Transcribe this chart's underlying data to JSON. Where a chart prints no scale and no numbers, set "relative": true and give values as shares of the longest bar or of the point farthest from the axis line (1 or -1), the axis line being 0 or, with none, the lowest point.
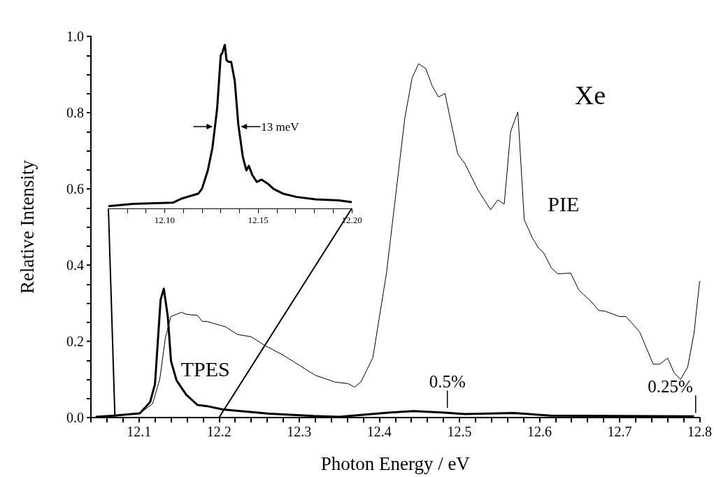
{
  "chart_data": [
    {
      "type": "line",
      "title": "Xe",
      "xlabel": "Photon Energy / eV",
      "ylabel": "Relative Intensity",
      "xlim": [
        12.04,
        12.8
      ],
      "xticks": [
        {
          "value": 12.04,
          "label": null
        },
        {
          "value": 12.06,
          "label": null
        },
        {
          "value": 12.08,
          "label": null
        },
        12.1,
        {
          "value": 12.12,
          "label": null
        },
        {
          "value": 12.14,
          "label": null
        },
        {
          "value": 12.16,
          "label": null
        },
        {
          "value": 12.18,
          "label": null
        },
        12.2,
        {
          "value": 12.22,
          "label": null
        },
        {
          "value": 12.24,
          "label": null
        },
        {
          "value": 12.26,
          "label": null
        },
        {
          "value": 12.28,
          "label": null
        },
        12.3,
        {
          "value": 12.32,
          "label": null
        },
        {
          "value": 12.34,
          "label": null
        },
        {
          "value": 12.36,
          "label": null
        },
        {
          "value": 12.38,
          "label": null
        },
        12.4,
        {
          "value": 12.42,
          "label": null
        },
        {
          "value": 12.44,
          "label": null
        },
        {
          "value": 12.46,
          "label": null
        },
        {
          "value": 12.48,
          "label": null
        },
        12.5,
        {
          "value": 12.52,
          "label": null
        },
        {
          "value": 12.54,
          "label": null
        },
        {
          "value": 12.56,
          "label": null
        },
        {
          "value": 12.58,
          "label": null
        },
        12.6,
        {
          "value": 12.62,
          "label": null
        },
        {
          "value": 12.64,
          "label": null
        },
        {
          "value": 12.66,
          "label": null
        },
        {
          "value": 12.68,
          "label": null
        },
        12.7,
        {
          "value": 12.72,
          "label": null
        },
        {
          "value": 12.74,
          "label": null
        },
        {
          "value": 12.76,
          "label": null
        },
        {
          "value": 12.78,
          "label": null
        },
        12.8
      ],
      "ylim": [
        0,
        1
      ],
      "yticks": [
        {
          "value": 0,
          "label": "0.0"
        },
        {
          "value": 0.05,
          "label": null
        },
        {
          "value": 0.1,
          "label": null
        },
        {
          "value": 0.15,
          "label": null
        },
        0.2,
        {
          "value": 0.25,
          "label": null
        },
        {
          "value": 0.3,
          "label": null
        },
        {
          "value": 0.35,
          "label": null
        },
        0.4,
        {
          "value": 0.45,
          "label": null
        },
        {
          "value": 0.5,
          "label": null
        },
        {
          "value": 0.55,
          "label": null
        },
        0.6,
        {
          "value": 0.65,
          "label": null
        },
        {
          "value": 0.7,
          "label": null
        },
        {
          "value": 0.75,
          "label": null
        },
        0.8,
        {
          "value": 0.85,
          "label": null
        },
        {
          "value": 0.9,
          "label": null
        },
        {
          "value": 0.95,
          "label": null
        },
        {
          "value": 1,
          "label": "1.0"
        }
      ],
      "series": [
        {
          "name": "TPES",
          "color": "#000000",
          "x": [
            12.046,
            12.069,
            12.101,
            12.114,
            12.12,
            12.127,
            12.131,
            12.136,
            12.14,
            12.147,
            12.159,
            12.173,
            12.185,
            12.205,
            12.263,
            12.318,
            12.35,
            12.411,
            12.443,
            12.482,
            12.507,
            12.568,
            12.614,
            12.7,
            12.793
          ],
          "values": [
            0.002,
            0.005,
            0.011,
            0.041,
            0.088,
            0.309,
            0.338,
            0.265,
            0.148,
            0.097,
            0.06,
            0.033,
            0.03,
            0.021,
            0.01,
            0.004,
            0.002,
            0.013,
            0.017,
            0.013,
            0.009,
            0.012,
            0.005,
            0.004,
            0.003
          ]
        },
        {
          "name": "PIE",
          "color": "#000000",
          "x": [
            12.046,
            12.069,
            12.101,
            12.117,
            12.126,
            12.133,
            12.14,
            12.153,
            12.159,
            12.173,
            12.179,
            12.185,
            12.208,
            12.223,
            12.24,
            12.258,
            12.279,
            12.32,
            12.345,
            12.361,
            12.369,
            12.377,
            12.392,
            12.409,
            12.432,
            12.441,
            12.449,
            12.458,
            12.466,
            12.474,
            12.482,
            12.498,
            12.507,
            12.523,
            12.539,
            12.548,
            12.556,
            12.564,
            12.573,
            12.581,
            12.591,
            12.599,
            12.605,
            12.615,
            12.623,
            12.639,
            12.649,
            12.666,
            12.674,
            12.682,
            12.7,
            12.708,
            12.725,
            12.742,
            12.75,
            12.76,
            12.768,
            12.776,
            12.785,
            12.793,
            12.8
          ],
          "values": [
            0.002,
            0.005,
            0.011,
            0.036,
            0.101,
            0.209,
            0.265,
            0.276,
            0.271,
            0.268,
            0.252,
            0.252,
            0.238,
            0.218,
            0.212,
            0.188,
            0.165,
            0.111,
            0.093,
            0.089,
            0.08,
            0.093,
            0.157,
            0.379,
            0.787,
            0.891,
            0.928,
            0.916,
            0.87,
            0.841,
            0.85,
            0.691,
            0.666,
            0.598,
            0.545,
            0.571,
            0.56,
            0.75,
            0.802,
            0.519,
            0.472,
            0.444,
            0.433,
            0.392,
            0.377,
            0.379,
            0.335,
            0.301,
            0.281,
            0.279,
            0.265,
            0.265,
            0.225,
            0.14,
            0.14,
            0.156,
            0.118,
            0.1,
            0.132,
            0.222,
            0.358
          ]
        }
      ],
      "annotations": [
        {
          "text": "0.5%",
          "x": 12.485,
          "y": 0.016
        },
        {
          "text": "0.25%",
          "x": 12.795,
          "y": 0.003
        }
      ]
    },
    {
      "type": "line",
      "relative": true,
      "tick_labels": "x",
      "xlim": [
        12.07,
        12.2
      ],
      "xticks": [
        {
          "value": 12.07,
          "label": null
        },
        {
          "value": 12.08,
          "label": null
        },
        {
          "value": 12.09,
          "label": null
        },
        {
          "value": 12.1,
          "label": "12.10"
        },
        {
          "value": 12.11,
          "label": null
        },
        {
          "value": 12.12,
          "label": null
        },
        {
          "value": 12.13,
          "label": null
        },
        {
          "value": 12.14,
          "label": null
        },
        {
          "value": 12.15,
          "label": "12.15"
        },
        {
          "value": 12.16,
          "label": null
        },
        {
          "value": 12.17,
          "label": null
        },
        {
          "value": 12.18,
          "label": null
        },
        {
          "value": 12.19,
          "label": null
        },
        {
          "value": 12.2,
          "label": "12.20"
        }
      ],
      "series": [
        {
          "color": "#000000",
          "x": [
            12.07,
            12.0831,
            12.1044,
            12.1094,
            12.1181,
            12.12,
            12.1231,
            12.1256,
            12.1281,
            12.13,
            12.1308,
            12.1322,
            12.1331,
            12.1343,
            12.1356,
            12.1375,
            12.1394,
            12.1418,
            12.1437,
            12.145,
            12.1469,
            12.1493,
            12.1518,
            12.1556,
            12.1581,
            12.1631,
            12.1706,
            12.1806,
            12.1931,
            12.2
          ],
          "values": [
            0.014,
            0.028,
            0.035,
            0.061,
            0.091,
            0.12,
            0.232,
            0.372,
            0.611,
            0.934,
            0.948,
            1,
            0.906,
            0.895,
            0.895,
            0.779,
            0.513,
            0.316,
            0.232,
            0.26,
            0.204,
            0.162,
            0.176,
            0.147,
            0.12,
            0.091,
            0.07,
            0.056,
            0.049,
            0.038
          ]
        }
      ],
      "annotations": [
        "13 meV"
      ]
    }
  ]
}
